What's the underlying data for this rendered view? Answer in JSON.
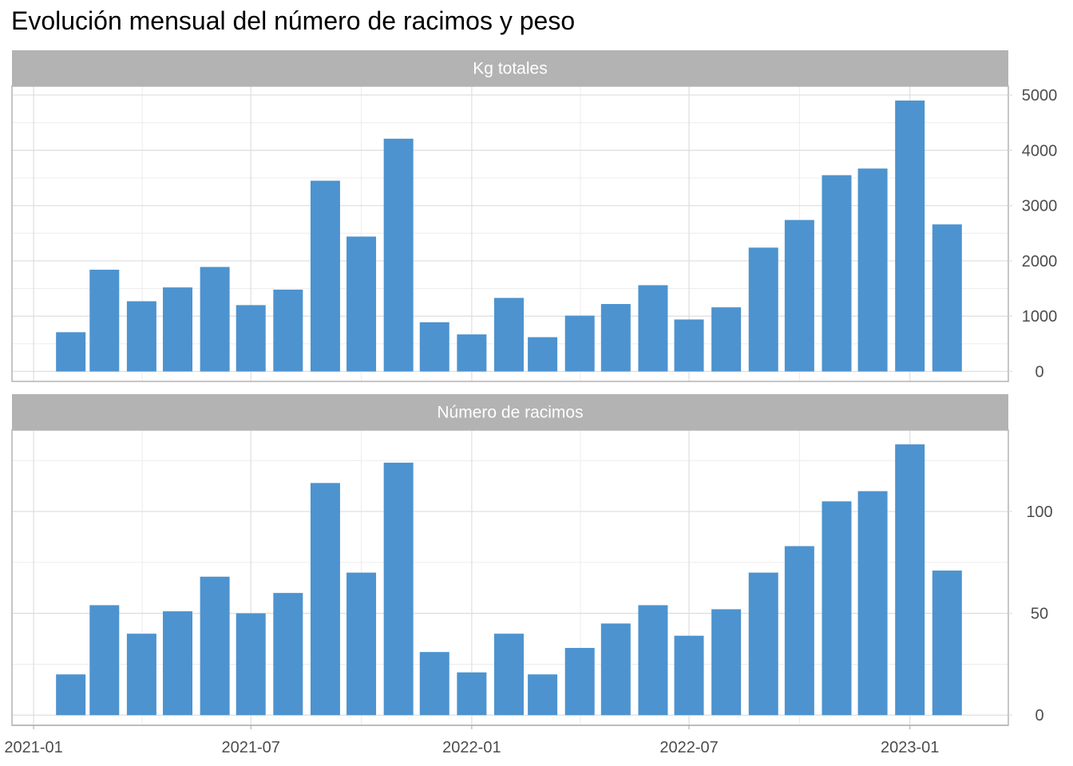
{
  "title": "Evolución mensual del número de racimos y peso",
  "colors": {
    "bar": "#4d93cf",
    "strip": "#b3b3b3",
    "grid_major": "#dedede",
    "grid_minor": "#ececec",
    "panel_border": "#b3b3b3",
    "tick_text": "#4d4d4d"
  },
  "chart_data": [
    {
      "type": "bar",
      "facet_label": "Kg totales",
      "x_tick_labels": [
        "2021-01",
        "2021-07",
        "2022-01",
        "2022-07",
        "2023-01"
      ],
      "x_ticks": [
        "2021-01-01",
        "2021-07-01",
        "2022-01-01",
        "2022-07-01",
        "2023-01-01"
      ],
      "x_range": [
        "2020-12-14",
        "2023-03-24"
      ],
      "ylim": [
        -180,
        5160
      ],
      "y_ticks": [
        0,
        1000,
        2000,
        3000,
        4000,
        5000
      ],
      "y_axis_position": "right",
      "grid": true,
      "categories": [
        "2021-02",
        "2021-03",
        "2021-04",
        "2021-05",
        "2021-06",
        "2021-07",
        "2021-08",
        "2021-09",
        "2021-10",
        "2021-11",
        "2021-12",
        "2022-01",
        "2022-02",
        "2022-03",
        "2022-04",
        "2022-05",
        "2022-06",
        "2022-07",
        "2022-08",
        "2022-09",
        "2022-10",
        "2022-11",
        "2022-12",
        "2023-01",
        "2023-02"
      ],
      "values": [
        710,
        1840,
        1270,
        1520,
        1890,
        1200,
        1480,
        3450,
        2440,
        4210,
        890,
        670,
        1330,
        620,
        1010,
        1220,
        1560,
        940,
        1160,
        2240,
        2740,
        3550,
        3670,
        4900,
        2660
      ]
    },
    {
      "type": "bar",
      "facet_label": "Número de racimos",
      "x_tick_labels": [
        "2021-01",
        "2021-07",
        "2022-01",
        "2022-07",
        "2023-01"
      ],
      "x_ticks": [
        "2021-01-01",
        "2021-07-01",
        "2022-01-01",
        "2022-07-01",
        "2023-01-01"
      ],
      "x_range": [
        "2020-12-14",
        "2023-03-24"
      ],
      "ylim": [
        -5,
        140
      ],
      "y_ticks": [
        0,
        50,
        100
      ],
      "y_axis_position": "right",
      "grid": true,
      "categories": [
        "2021-02",
        "2021-03",
        "2021-04",
        "2021-05",
        "2021-06",
        "2021-07",
        "2021-08",
        "2021-09",
        "2021-10",
        "2021-11",
        "2021-12",
        "2022-01",
        "2022-02",
        "2022-03",
        "2022-04",
        "2022-05",
        "2022-06",
        "2022-07",
        "2022-08",
        "2022-09",
        "2022-10",
        "2022-11",
        "2022-12",
        "2023-01",
        "2023-02"
      ],
      "values": [
        20,
        54,
        40,
        51,
        68,
        50,
        60,
        114,
        70,
        124,
        31,
        21,
        40,
        20,
        33,
        45,
        54,
        39,
        52,
        70,
        83,
        105,
        110,
        133,
        71
      ]
    }
  ]
}
